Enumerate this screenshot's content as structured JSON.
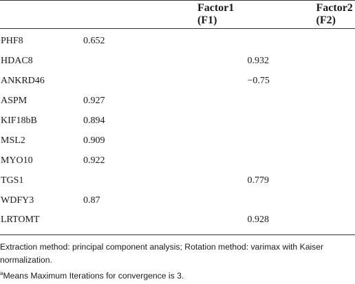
{
  "table": {
    "headers": [
      "",
      "Factor1 (F1)",
      "Factor2 (F2)"
    ],
    "rows": [
      {
        "gene": "PHF8",
        "f1": "0.652",
        "f2": ""
      },
      {
        "gene": "HDAC8",
        "f1": "",
        "f2": "0.932"
      },
      {
        "gene": "ANKRD46",
        "f1": "",
        "f2": "−0.75"
      },
      {
        "gene": "ASPM",
        "f1": "0.927",
        "f2": ""
      },
      {
        "gene": "KIF18bB",
        "f1": "0.894",
        "f2": ""
      },
      {
        "gene": "MSL2",
        "f1": "0.909",
        "f2": ""
      },
      {
        "gene": "MYO10",
        "f1": "0.922",
        "f2": ""
      },
      {
        "gene": "TGS1",
        "f1": "",
        "f2": "0.779"
      },
      {
        "gene": "WDFY3",
        "f1": "0.87",
        "f2": ""
      },
      {
        "gene": "LRTOMT",
        "f1": "",
        "f2": "0.928"
      }
    ]
  },
  "footnotes": {
    "extraction": "Extraction method: principal component analysis; Rotation method: varimax with Kaiser normalization.",
    "marker": "a",
    "iterations": "Means Maximum Iterations for convergence is 3."
  }
}
